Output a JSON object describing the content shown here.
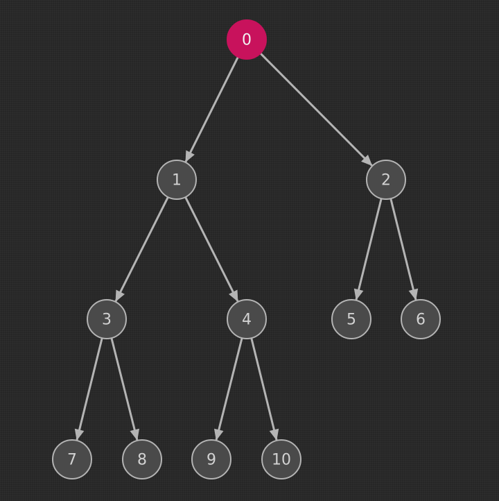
{
  "tree": {
    "colors": {
      "background": "#262626",
      "node_fill": "#4a4a4a",
      "node_stroke": "#b4b4b4",
      "node_text": "#d2d2d2",
      "edge": "#b4b4b4",
      "highlight_fill": "#c8125c",
      "highlight_text": "#f2f2f2"
    },
    "highlighted": "0",
    "nodes": [
      {
        "id": "0",
        "label": "0"
      },
      {
        "id": "1",
        "label": "1"
      },
      {
        "id": "2",
        "label": "2"
      },
      {
        "id": "3",
        "label": "3"
      },
      {
        "id": "4",
        "label": "4"
      },
      {
        "id": "5",
        "label": "5"
      },
      {
        "id": "6",
        "label": "6"
      },
      {
        "id": "7",
        "label": "7"
      },
      {
        "id": "8",
        "label": "8"
      },
      {
        "id": "9",
        "label": "9"
      },
      {
        "id": "10",
        "label": "10"
      }
    ],
    "edges": [
      {
        "from": "0",
        "to": "1"
      },
      {
        "from": "0",
        "to": "2"
      },
      {
        "from": "1",
        "to": "3"
      },
      {
        "from": "1",
        "to": "4"
      },
      {
        "from": "2",
        "to": "5"
      },
      {
        "from": "2",
        "to": "6"
      },
      {
        "from": "3",
        "to": "7"
      },
      {
        "from": "3",
        "to": "8"
      },
      {
        "from": "4",
        "to": "9"
      },
      {
        "from": "4",
        "to": "10"
      }
    ]
  }
}
